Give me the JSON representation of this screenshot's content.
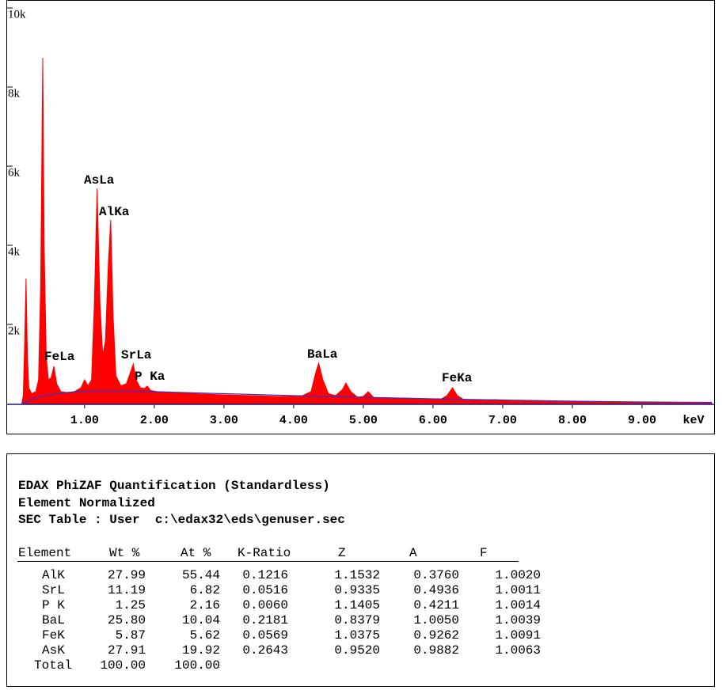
{
  "chart_data": {
    "type": "area",
    "x_label": "keV",
    "xlim": [
      -0.1,
      10.0
    ],
    "xticks": [
      {
        "value": 1,
        "label": "1.00"
      },
      {
        "value": 2,
        "label": "2.00"
      },
      {
        "value": 3,
        "label": "3.00"
      },
      {
        "value": 4,
        "label": "4.00"
      },
      {
        "value": 5,
        "label": "5.00"
      },
      {
        "value": 6,
        "label": "6.00"
      },
      {
        "value": 7,
        "label": "7.00"
      },
      {
        "value": 8,
        "label": "8.00"
      },
      {
        "value": 9,
        "label": "9.00"
      }
    ],
    "ylim": [
      0,
      10000
    ],
    "yticks": [
      {
        "value": 2000,
        "label": "2k"
      },
      {
        "value": 4000,
        "label": "4k"
      },
      {
        "value": 6000,
        "label": "6k"
      },
      {
        "value": 8000,
        "label": "8k"
      },
      {
        "value": 10000,
        "label": "10k"
      }
    ],
    "annotations": [
      "AsLa",
      "AlKa",
      "FeLa",
      "SrLa",
      "P Ka",
      "BaLa",
      "FeKa"
    ],
    "series": [
      {
        "color": "#ff0000",
        "x": [
          0.1,
          0.12,
          0.14,
          0.16,
          0.18,
          0.2,
          0.24,
          0.3,
          0.34,
          0.37,
          0.4,
          0.42,
          0.45,
          0.48,
          0.52,
          0.56,
          0.6,
          0.66,
          0.75,
          0.85,
          0.95,
          1.0,
          1.05,
          1.1,
          1.14,
          1.18,
          1.22,
          1.26,
          1.3,
          1.34,
          1.375,
          1.41,
          1.45,
          1.52,
          1.6,
          1.66,
          1.7,
          1.74,
          1.8,
          1.86,
          1.9,
          1.95,
          2.05,
          2.3,
          2.6,
          3.0,
          3.4,
          3.8,
          4.1,
          4.25,
          4.32,
          4.36,
          4.42,
          4.5,
          4.6,
          4.7,
          4.75,
          4.82,
          4.92,
          5.0,
          5.07,
          5.15,
          5.4,
          5.6,
          5.8,
          6.1,
          6.2,
          6.28,
          6.35,
          6.45,
          6.7,
          6.9,
          7.1,
          7.5,
          8.0,
          8.5,
          9.0,
          9.5,
          10.0
        ],
        "values": [
          0,
          200,
          1500,
          3160,
          1200,
          400,
          250,
          300,
          600,
          3000,
          8740,
          4000,
          1200,
          600,
          650,
          940,
          500,
          300,
          280,
          300,
          400,
          600,
          450,
          600,
          2500,
          5440,
          2600,
          1200,
          1600,
          3500,
          4640,
          2200,
          700,
          450,
          500,
          800,
          1000,
          600,
          400,
          380,
          440,
          330,
          300,
          280,
          250,
          220,
          200,
          180,
          180,
          300,
          800,
          1020,
          600,
          250,
          200,
          350,
          520,
          300,
          160,
          180,
          300,
          150,
          130,
          140,
          110,
          100,
          200,
          400,
          200,
          90,
          80,
          100,
          70,
          60,
          50,
          40,
          30,
          25,
          20
        ]
      },
      {
        "color": "#3333cc",
        "x": [
          0.1,
          0.3,
          0.6,
          1.0,
          1.5,
          2.0,
          3.0,
          4.0,
          5.0,
          6.0,
          7.0,
          8.0,
          9.0,
          10.0
        ],
        "values": [
          0,
          150,
          260,
          310,
          320,
          300,
          250,
          200,
          160,
          120,
          90,
          60,
          40,
          30
        ]
      }
    ]
  },
  "report": {
    "title": "EDAX PhiZAF Quantification (Standardless)",
    "subtitle": "Element Normalized",
    "sec_table": "SEC Table : User  c:\\edax32\\eds\\genuser.sec",
    "columns": [
      "Element",
      "Wt %",
      "At %",
      "K-Ratio",
      "Z",
      "A",
      "F"
    ],
    "rows": [
      [
        "AlK",
        "27.99",
        "55.44",
        "0.1216",
        "1.1532",
        "0.3760",
        "1.0020"
      ],
      [
        "SrL",
        "11.19",
        "6.82",
        "0.0516",
        "0.9335",
        "0.4936",
        "1.0011"
      ],
      [
        "P K",
        "1.25",
        "2.16",
        "0.0060",
        "1.1405",
        "0.4211",
        "1.0014"
      ],
      [
        "BaL",
        "25.80",
        "10.04",
        "0.2181",
        "0.8379",
        "1.0050",
        "1.0039"
      ],
      [
        "FeK",
        "5.87",
        "5.62",
        "0.0569",
        "1.0375",
        "0.9262",
        "1.0091"
      ],
      [
        "AsK",
        "27.91",
        "19.92",
        "0.2643",
        "0.9520",
        "0.9882",
        "1.0063"
      ]
    ],
    "total": [
      "Total",
      "100.00",
      "100.00"
    ]
  }
}
